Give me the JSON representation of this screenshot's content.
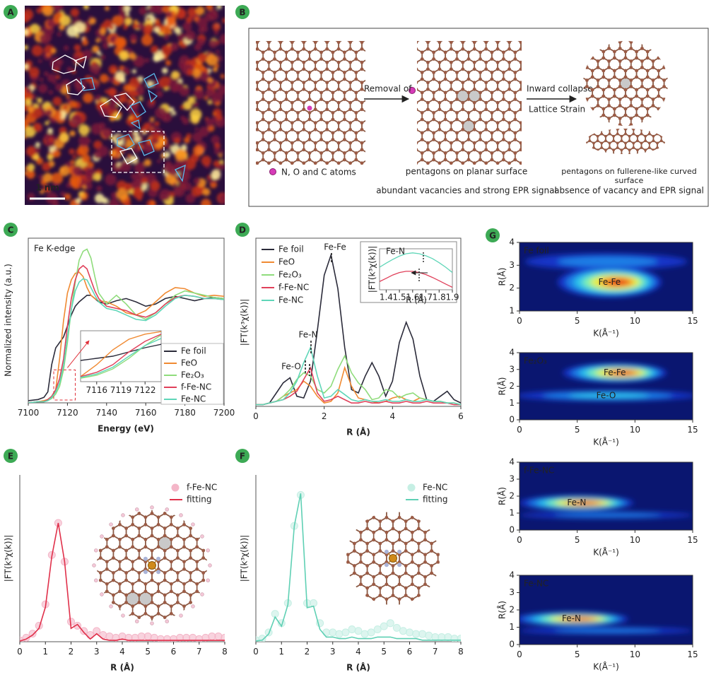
{
  "panel_a": {
    "label": "A",
    "scale_bar": "1 nm"
  },
  "panel_b": {
    "label": "B",
    "removal": "Removal of",
    "inward": "Inward collapse",
    "strain": "Lattice Strain",
    "legend": "N, O and C atoms",
    "planar": "pentagons on planar surface",
    "planar_note": "abundant vacancies and strong EPR signal",
    "curved": "pentagons on fullerene-like curved surface",
    "curved_note": "absence of vacancy and EPR signal"
  },
  "chart_data": [
    {
      "type": "line",
      "label": "C",
      "annotations": [
        "Fe K-edge"
      ],
      "xlabel": "Energy (eV)",
      "ylabel": "Normalized intensity (a.u.)",
      "xlim": [
        7100,
        7200
      ],
      "xticks": [
        7100,
        7120,
        7140,
        7160,
        7180,
        7200
      ],
      "ylim": [
        0,
        1.5
      ],
      "x": [
        7100,
        7105,
        7108,
        7110,
        7112,
        7114,
        7116,
        7118,
        7120,
        7122,
        7124,
        7126,
        7128,
        7130,
        7132,
        7134,
        7136,
        7140,
        7145,
        7150,
        7155,
        7160,
        7165,
        7170,
        7175,
        7180,
        7185,
        7190,
        7195,
        7200
      ],
      "series": [
        {
          "name": "Fe foil",
          "color": "#2b2b3a",
          "values": [
            0.02,
            0.03,
            0.05,
            0.1,
            0.35,
            0.5,
            0.55,
            0.6,
            0.7,
            0.8,
            0.88,
            0.92,
            0.95,
            0.98,
            0.98,
            0.95,
            0.92,
            0.9,
            0.93,
            0.95,
            0.92,
            0.88,
            0.9,
            0.95,
            0.97,
            0.95,
            0.93,
            0.95,
            0.96,
            0.95
          ]
        },
        {
          "name": "FeO",
          "color": "#f08a32",
          "values": [
            0,
            0.01,
            0.02,
            0.03,
            0.06,
            0.12,
            0.4,
            0.75,
            1.0,
            1.12,
            1.18,
            1.19,
            1.15,
            1.05,
            0.98,
            0.95,
            0.93,
            0.92,
            0.88,
            0.82,
            0.8,
            0.84,
            0.92,
            1.0,
            1.05,
            1.04,
            1.0,
            0.97,
            0.98,
            0.97
          ]
        },
        {
          "name": "Fe₂O₃",
          "color": "#8fdc7c",
          "values": [
            0,
            0.01,
            0.01,
            0.02,
            0.04,
            0.08,
            0.15,
            0.3,
            0.55,
            0.85,
            1.1,
            1.3,
            1.38,
            1.4,
            1.32,
            1.15,
            1.0,
            0.9,
            0.98,
            0.9,
            0.8,
            0.76,
            0.82,
            0.9,
            0.98,
            1.02,
            1.0,
            0.98,
            0.96,
            0.95
          ]
        },
        {
          "name": "f-Fe-NC",
          "color": "#e0405a",
          "values": [
            0,
            0.01,
            0.01,
            0.03,
            0.06,
            0.12,
            0.22,
            0.4,
            0.7,
            0.95,
            1.12,
            1.22,
            1.25,
            1.22,
            1.12,
            1.02,
            0.95,
            0.88,
            0.86,
            0.84,
            0.8,
            0.78,
            0.82,
            0.9,
            0.96,
            0.98,
            0.97,
            0.95,
            0.95,
            0.94
          ]
        },
        {
          "name": "Fe-NC",
          "color": "#5fd6b8",
          "values": [
            0,
            0.01,
            0.01,
            0.02,
            0.05,
            0.1,
            0.18,
            0.34,
            0.6,
            0.85,
            1.02,
            1.1,
            1.13,
            1.12,
            1.05,
            0.98,
            0.92,
            0.86,
            0.84,
            0.8,
            0.76,
            0.75,
            0.8,
            0.88,
            0.95,
            0.98,
            0.97,
            0.95,
            0.95,
            0.94
          ]
        }
      ],
      "inset": {
        "xlim": [
          7114,
          7124
        ],
        "ylim": [
          0,
          1.2
        ],
        "xticks": [
          7116,
          7119,
          7122
        ]
      }
    },
    {
      "type": "line",
      "label": "D",
      "annotations": [
        "Fe-Fe",
        "Fe-N",
        "Fe-O"
      ],
      "xlabel": "R (Å)",
      "ylabel": "|FT(k³χ(k))|",
      "xlim": [
        0,
        6
      ],
      "xticks": [
        0,
        2,
        4,
        6
      ],
      "ylim": [
        0,
        10
      ],
      "x": [
        0,
        0.2,
        0.4,
        0.6,
        0.8,
        1,
        1.2,
        1.4,
        1.6,
        1.8,
        2,
        2.2,
        2.4,
        2.6,
        2.8,
        3,
        3.2,
        3.4,
        3.6,
        3.8,
        4,
        4.2,
        4.4,
        4.6,
        4.8,
        5,
        5.2,
        5.4,
        5.6,
        5.8,
        6
      ],
      "series": [
        {
          "name": "Fe foil",
          "color": "#2b2b3a",
          "values": [
            0.1,
            0.1,
            0.2,
            0.8,
            1.4,
            1.7,
            0.6,
            0.5,
            1.5,
            4.5,
            7.8,
            9.0,
            7.0,
            3.5,
            1.0,
            0.8,
            1.8,
            2.6,
            1.8,
            0.6,
            1.5,
            3.8,
            5.0,
            4.0,
            1.8,
            0.4,
            0.3,
            0.6,
            0.9,
            0.4,
            0.2
          ]
        },
        {
          "name": "FeO",
          "color": "#f08a32",
          "values": [
            0.1,
            0.1,
            0.2,
            0.3,
            0.6,
            0.8,
            1.0,
            1.5,
            1.2,
            0.6,
            0.2,
            0.3,
            0.8,
            2.3,
            1.2,
            0.5,
            0.4,
            0.3,
            0.2,
            0.3,
            0.5,
            0.6,
            0.4,
            0.3,
            0.5,
            0.4,
            0.3,
            0.3,
            0.2,
            0.2,
            0.1
          ]
        },
        {
          "name": "Fe₂O₃",
          "color": "#8fdc7c",
          "values": [
            0.1,
            0.1,
            0.2,
            0.3,
            0.6,
            1.0,
            1.6,
            2.0,
            1.8,
            1.0,
            0.8,
            1.2,
            2.2,
            3.0,
            2.0,
            1.4,
            1.0,
            0.4,
            0.5,
            1.0,
            0.9,
            0.5,
            0.7,
            0.8,
            0.5,
            0.4,
            0.3,
            0.3,
            0.2,
            0.2,
            0.1
          ]
        },
        {
          "name": "f-Fe-NC",
          "color": "#e0405a",
          "values": [
            0.1,
            0.1,
            0.2,
            0.3,
            0.4,
            0.6,
            0.9,
            1.6,
            2.3,
            0.8,
            0.3,
            0.4,
            0.6,
            0.4,
            0.2,
            0.2,
            0.3,
            0.2,
            0.2,
            0.3,
            0.2,
            0.2,
            0.3,
            0.2,
            0.2,
            0.3,
            0.2,
            0.2,
            0.2,
            0.1,
            0.1
          ]
        },
        {
          "name": "Fe-NC",
          "color": "#5fd6b8",
          "values": [
            0.1,
            0.1,
            0.2,
            0.3,
            0.4,
            0.8,
            1.5,
            2.6,
            3.5,
            1.8,
            0.5,
            0.6,
            1.0,
            0.7,
            0.4,
            0.3,
            0.4,
            0.3,
            0.3,
            0.4,
            0.3,
            0.3,
            0.4,
            0.3,
            0.3,
            0.4,
            0.3,
            0.3,
            0.2,
            0.2,
            0.1
          ]
        }
      ],
      "inset": {
        "title": "Fe-N",
        "xlabel": "R (Å)",
        "ylabel": "|FT(k³χ(k))|",
        "xlim": [
          1.35,
          1.9
        ],
        "ylim": [
          0,
          1
        ],
        "xticks": [
          1.4,
          1.5,
          1.6,
          1.7,
          1.8,
          1.9
        ],
        "x": [
          1.35,
          1.4,
          1.45,
          1.5,
          1.55,
          1.6,
          1.65,
          1.7,
          1.75,
          1.8,
          1.85,
          1.9
        ],
        "series": [
          {
            "color": "#5fd6b8",
            "values": [
              0.55,
              0.65,
              0.74,
              0.82,
              0.88,
              0.9,
              0.88,
              0.83,
              0.76,
              0.66,
              0.55,
              0.42
            ]
          },
          {
            "color": "#e0405a",
            "values": [
              0.2,
              0.28,
              0.36,
              0.42,
              0.45,
              0.45,
              0.42,
              0.37,
              0.3,
              0.22,
              0.14,
              0.06
            ]
          }
        ]
      }
    },
    {
      "type": "line",
      "label": "E",
      "xlabel": "R (Å)",
      "ylabel": "|FT(k³χ(k))|",
      "xlim": [
        0,
        8
      ],
      "xticks": [
        0,
        1,
        2,
        3,
        4,
        5,
        6,
        7,
        8
      ],
      "ylim": [
        0,
        12.5
      ],
      "x": [
        0,
        0.25,
        0.5,
        0.75,
        1,
        1.25,
        1.5,
        1.75,
        2,
        2.25,
        2.5,
        2.75,
        3,
        3.25,
        3.5,
        3.75,
        4,
        4.25,
        4.5,
        4.75,
        5,
        5.25,
        5.5,
        5.75,
        6,
        6.25,
        6.5,
        6.75,
        7,
        7.25,
        7.5,
        7.75,
        8
      ],
      "series": [
        {
          "name": "f-Fe-NC",
          "color": "#f4b6c8",
          "type": "scatter",
          "values": [
            0.1,
            0.3,
            0.6,
            1.2,
            2.8,
            6.5,
            8.9,
            6.0,
            1.5,
            1.2,
            0.8,
            0.5,
            0.8,
            0.5,
            0.4,
            0.3,
            0.4,
            0.3,
            0.3,
            0.4,
            0.4,
            0.3,
            0.2,
            0.2,
            0.2,
            0.3,
            0.3,
            0.3,
            0.2,
            0.3,
            0.4,
            0.4,
            0.3
          ]
        },
        {
          "name": "fitting",
          "color": "#e0304a",
          "type": "line",
          "values": [
            0.05,
            0.2,
            0.5,
            1.0,
            2.6,
            6.4,
            8.9,
            6.0,
            1.0,
            1.3,
            0.7,
            0.2,
            0.6,
            0.2,
            0.1,
            0.1,
            0.2,
            0.1,
            0.1,
            0.1,
            0.1,
            0.1,
            0.1,
            0.1,
            0.1,
            0.1,
            0.1,
            0.1,
            0.1,
            0.1,
            0.1,
            0.1,
            0.1
          ]
        }
      ]
    },
    {
      "type": "line",
      "label": "F",
      "xlabel": "R (Å)",
      "ylabel": "|FT(k³χ(k))|",
      "xlim": [
        0,
        8
      ],
      "xticks": [
        0,
        1,
        2,
        3,
        4,
        5,
        6,
        7,
        8
      ],
      "ylim": [
        0,
        10.8
      ],
      "x": [
        0,
        0.25,
        0.5,
        0.75,
        1,
        1.25,
        1.5,
        1.75,
        2,
        2.25,
        2.5,
        2.75,
        3,
        3.25,
        3.5,
        3.75,
        4,
        4.25,
        4.5,
        4.75,
        5,
        5.25,
        5.5,
        5.75,
        6,
        6.25,
        6.5,
        6.75,
        7,
        7.25,
        7.5,
        7.75,
        8
      ],
      "series": [
        {
          "name": "Fe-NC",
          "color": "#c6efe4",
          "type": "scatter",
          "values": [
            0.1,
            0.2,
            0.6,
            1.8,
            1.2,
            2.5,
            7.5,
            9.5,
            2.5,
            2.5,
            1.2,
            0.6,
            0.6,
            0.5,
            0.6,
            0.8,
            0.7,
            0.5,
            0.6,
            0.8,
            1.0,
            1.2,
            0.9,
            0.7,
            0.6,
            0.5,
            0.5,
            0.4,
            0.3,
            0.3,
            0.3,
            0.2,
            0.2
          ]
        },
        {
          "name": "fitting",
          "color": "#5fd0b4",
          "type": "line",
          "values": [
            0.05,
            0.1,
            0.5,
            1.6,
            1.0,
            2.4,
            7.5,
            9.6,
            2.2,
            2.3,
            0.8,
            0.3,
            0.3,
            0.2,
            0.2,
            0.3,
            0.2,
            0.2,
            0.2,
            0.3,
            0.3,
            0.3,
            0.2,
            0.2,
            0.2,
            0.2,
            0.1,
            0.1,
            0.1,
            0.1,
            0.1,
            0.1,
            0.1
          ]
        }
      ]
    },
    {
      "type": "contour",
      "label": "G",
      "title": "Fe foil",
      "annotations": [
        "Fe-Fe"
      ],
      "xlabel": "K(Å⁻¹)",
      "ylabel": "R(Å)",
      "xlim": [
        0,
        15
      ],
      "xticks": [
        0,
        5,
        10,
        15
      ],
      "ylim": [
        1,
        4
      ],
      "yticks": [
        1,
        2,
        3,
        4
      ]
    },
    {
      "type": "contour",
      "title": "Fe₂O₃",
      "annotations": [
        "Fe-Fe",
        "Fe-O"
      ],
      "xlabel": "K(Å⁻¹)",
      "ylabel": "R(Å)",
      "xlim": [
        0,
        15
      ],
      "xticks": [
        0,
        5,
        10,
        15
      ],
      "ylim": [
        0,
        4
      ],
      "yticks": [
        0,
        1,
        2,
        3,
        4
      ]
    },
    {
      "type": "contour",
      "title": "f-Fe-NC",
      "annotations": [
        "Fe-N"
      ],
      "xlabel": "K(Å⁻¹)",
      "ylabel": "R(Å)",
      "xlim": [
        0,
        15
      ],
      "xticks": [
        0,
        5,
        10,
        15
      ],
      "ylim": [
        0,
        4
      ],
      "yticks": [
        0,
        1,
        2,
        3,
        4
      ]
    },
    {
      "type": "contour",
      "title": "Fe-NC",
      "annotations": [
        "Fe-N"
      ],
      "xlabel": "K(Å⁻¹)",
      "ylabel": "R(Å)",
      "xlim": [
        0,
        15
      ],
      "xticks": [
        0,
        5,
        10,
        15
      ],
      "ylim": [
        0,
        4
      ],
      "yticks": [
        0,
        1,
        2,
        3,
        4
      ]
    }
  ]
}
